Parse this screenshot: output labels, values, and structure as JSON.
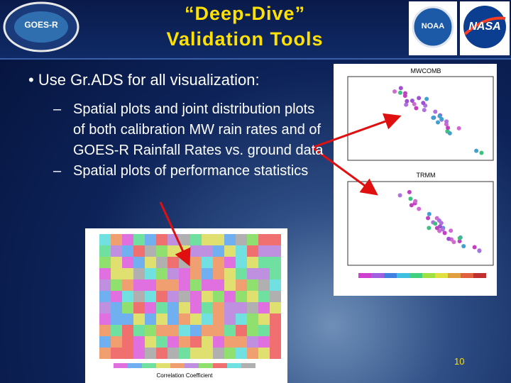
{
  "header": {
    "title_lines": [
      "“Deep-Dive”",
      "Validation Tools"
    ],
    "logos": [
      "GOES-R",
      "NOAA",
      "NASA"
    ]
  },
  "bullets": [
    {
      "text": "Use Gr.ADS for all visualization:",
      "sub": [
        "Spatial plots and joint distribution plots of both calibration MW rain rates and of GOES-R Rainfall Rates vs. ground data",
        "Spatial plots of performance statistics"
      ]
    }
  ],
  "figures": {
    "scatter_titles": [
      "MWCOMB",
      "TRMM"
    ],
    "map_caption": "Correlation Coefficient"
  },
  "page_number": "10"
}
